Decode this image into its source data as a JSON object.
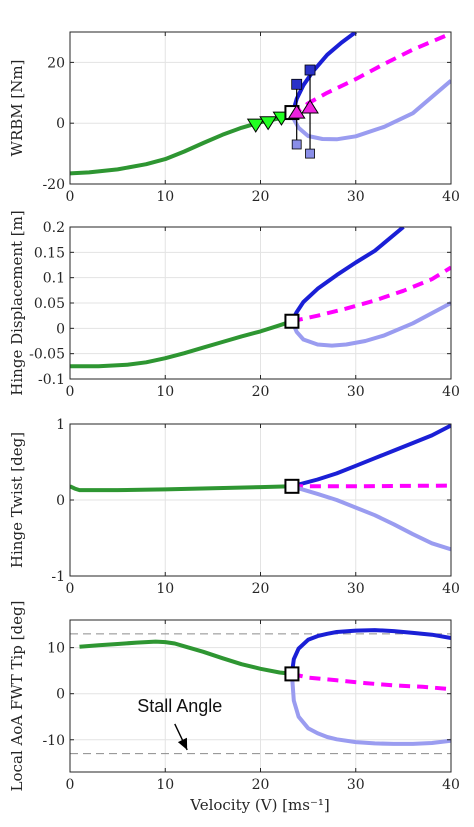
{
  "figure": {
    "xlabel": "Velocity (V) [ms⁻¹]"
  },
  "colors": {
    "pre_fold": "#2e9632",
    "stable_upper": "#1a1fd6",
    "unstable": "#ff00ff",
    "stable_lower": "#9a9cf0",
    "square_upper": "#2a32c8",
    "square_lower": "#8a8ee8",
    "triangle_down": "#22ff22",
    "triangle_up": "#ee22dd",
    "grid": "#e3e3e3",
    "stall_line": "#8c8c8c"
  },
  "chart_data": [
    {
      "type": "line",
      "ylabel": "WRBM [Nm]",
      "xlim": [
        0,
        40
      ],
      "ylim": [
        -20,
        30
      ],
      "xticks": [
        0,
        10,
        20,
        30,
        40
      ],
      "yticks": [
        -20,
        0,
        20
      ],
      "grid": true,
      "series": [
        {
          "role": "pre_fold",
          "style": "solid",
          "x": [
            0,
            2,
            5,
            8,
            10,
            12,
            14,
            16,
            18,
            20,
            22,
            23.3
          ],
          "y": [
            -16.5,
            -16.2,
            -15.2,
            -13.5,
            -11.8,
            -9.3,
            -6.5,
            -3.8,
            -1.5,
            0.3,
            1.6,
            2.5
          ]
        },
        {
          "role": "stable_upper",
          "style": "solid",
          "x": [
            23.3,
            23.8,
            24.5,
            25.5,
            27,
            28.5,
            30
          ],
          "y": [
            2.5,
            8,
            12.5,
            17,
            22.5,
            26.5,
            30
          ]
        },
        {
          "role": "unstable",
          "style": "dashed",
          "x": [
            23.3,
            25,
            27,
            30,
            33,
            36,
            40
          ],
          "y": [
            2.5,
            6.5,
            10,
            14.5,
            19.5,
            24.2,
            29.5
          ]
        },
        {
          "role": "stable_lower",
          "style": "solid",
          "x": [
            23.3,
            24,
            25,
            26.5,
            28,
            30,
            33,
            36,
            40
          ],
          "y": [
            2.5,
            -1.5,
            -4.2,
            -5.2,
            -5.3,
            -4.3,
            -1.2,
            3.3,
            14
          ]
        }
      ],
      "markers": [
        {
          "shape": "triangle_down",
          "x": 19.5,
          "y": -0.5
        },
        {
          "shape": "triangle_down",
          "x": 20.8,
          "y": 0.3
        },
        {
          "shape": "triangle_down",
          "x": 22.2,
          "y": 1.8
        },
        {
          "shape": "square_open",
          "x": 23.3,
          "y": 3.5
        },
        {
          "shape": "triangle_up",
          "x": 23.8,
          "y": 3.5
        },
        {
          "shape": "triangle_up",
          "x": 25.2,
          "y": 5.2
        },
        {
          "shape": "square_upper",
          "x": 23.8,
          "y": 12.8
        },
        {
          "shape": "square_upper",
          "x": 25.2,
          "y": 17.5
        },
        {
          "shape": "square_lower",
          "x": 23.8,
          "y": -7.0
        },
        {
          "shape": "square_lower",
          "x": 25.2,
          "y": -10.0
        }
      ],
      "error_bars": [
        {
          "x": 23.8,
          "y_low": -7.0,
          "y_high": 12.8
        },
        {
          "x": 25.2,
          "y_low": -10.0,
          "y_high": 17.5
        }
      ]
    },
    {
      "type": "line",
      "ylabel": "Hinge Displacement [m]",
      "xlim": [
        0,
        40
      ],
      "ylim": [
        -0.1,
        0.2
      ],
      "xticks": [
        0,
        10,
        20,
        30,
        40
      ],
      "yticks": [
        -0.1,
        -0.05,
        0,
        0.05,
        0.1,
        0.15,
        0.2
      ],
      "grid": true,
      "series": [
        {
          "role": "pre_fold",
          "style": "solid",
          "x": [
            0,
            3,
            6,
            8,
            10,
            12,
            14,
            16,
            18,
            20,
            22,
            23.3
          ],
          "y": [
            -0.075,
            -0.075,
            -0.072,
            -0.067,
            -0.059,
            -0.049,
            -0.038,
            -0.027,
            -0.016,
            -0.006,
            0.006,
            0.014
          ]
        },
        {
          "role": "stable_upper",
          "style": "solid",
          "x": [
            23.3,
            23.8,
            24.5,
            26,
            28,
            30,
            32,
            35
          ],
          "y": [
            0.014,
            0.032,
            0.052,
            0.078,
            0.105,
            0.13,
            0.153,
            0.2
          ]
        },
        {
          "role": "unstable",
          "style": "dashed",
          "x": [
            23.3,
            26,
            29,
            32,
            35,
            38,
            40
          ],
          "y": [
            0.014,
            0.025,
            0.039,
            0.055,
            0.074,
            0.097,
            0.12
          ]
        },
        {
          "role": "stable_lower",
          "style": "solid",
          "x": [
            23.3,
            23.8,
            24.5,
            26,
            27.5,
            29,
            31,
            33,
            36,
            40
          ],
          "y": [
            0.014,
            -0.007,
            -0.022,
            -0.032,
            -0.034,
            -0.032,
            -0.025,
            -0.014,
            0.01,
            0.05
          ]
        }
      ],
      "markers": [
        {
          "shape": "square_open",
          "x": 23.3,
          "y": 0.014
        }
      ]
    },
    {
      "type": "line",
      "ylabel": "Hinge Twist [deg]",
      "xlim": [
        0,
        40
      ],
      "ylim": [
        -1,
        1
      ],
      "xticks": [
        0,
        10,
        20,
        30,
        40
      ],
      "yticks": [
        -1,
        0,
        1
      ],
      "grid": true,
      "series": [
        {
          "role": "pre_fold",
          "style": "solid",
          "x": [
            0,
            0.5,
            1,
            2,
            5,
            10,
            15,
            20,
            23.3
          ],
          "y": [
            0.18,
            0.15,
            0.13,
            0.13,
            0.13,
            0.14,
            0.155,
            0.17,
            0.18
          ]
        },
        {
          "role": "stable_upper",
          "style": "solid",
          "x": [
            23.3,
            26,
            28,
            30,
            32,
            34,
            36,
            38,
            40
          ],
          "y": [
            0.18,
            0.27,
            0.35,
            0.45,
            0.55,
            0.65,
            0.75,
            0.85,
            0.98
          ]
        },
        {
          "role": "unstable",
          "style": "dashed",
          "x": [
            23.3,
            26,
            30,
            35,
            40
          ],
          "y": [
            0.18,
            0.18,
            0.18,
            0.185,
            0.19
          ]
        },
        {
          "role": "stable_lower",
          "style": "solid",
          "x": [
            23.3,
            26,
            28,
            30,
            32,
            34,
            36,
            38,
            40
          ],
          "y": [
            0.18,
            0.08,
            0,
            -0.1,
            -0.2,
            -0.32,
            -0.45,
            -0.57,
            -0.65
          ]
        }
      ],
      "markers": [
        {
          "shape": "square_open",
          "x": 23.3,
          "y": 0.18
        }
      ]
    },
    {
      "type": "line",
      "ylabel": "Local AoA FWT Tip [deg]",
      "xlim": [
        0,
        40
      ],
      "ylim": [
        -17,
        16
      ],
      "xticks": [
        0,
        10,
        20,
        30,
        40
      ],
      "yticks": [
        -10,
        0,
        10
      ],
      "grid": true,
      "stall_angle_lines": [
        13,
        -13
      ],
      "annotation": {
        "text": "Stall Angle",
        "x": 11,
        "y": -7
      },
      "series": [
        {
          "role": "pre_fold",
          "style": "solid",
          "x": [
            1,
            3,
            5,
            7,
            9,
            10,
            11,
            12,
            14,
            16,
            18,
            20,
            22,
            23.3
          ],
          "y": [
            10.2,
            10.5,
            10.8,
            11.1,
            11.3,
            11.2,
            10.9,
            10.3,
            9.1,
            7.7,
            6.4,
            5.4,
            4.6,
            4.3
          ]
        },
        {
          "role": "stable_upper",
          "style": "solid",
          "x": [
            23.3,
            23.5,
            24,
            25,
            26,
            27,
            28,
            30,
            32,
            34,
            36,
            38,
            40
          ],
          "y": [
            4.3,
            7.5,
            9.8,
            11.7,
            12.5,
            13,
            13.4,
            13.7,
            13.8,
            13.6,
            13.2,
            12.8,
            12.1
          ]
        },
        {
          "role": "unstable",
          "style": "dashed",
          "x": [
            23.3,
            25,
            28,
            31,
            34,
            37,
            40
          ],
          "y": [
            4.3,
            3.5,
            2.9,
            2.3,
            1.8,
            1.5,
            1.0
          ]
        },
        {
          "role": "stable_lower",
          "style": "solid",
          "x": [
            23.3,
            23.5,
            24,
            25,
            26,
            27,
            28,
            30,
            32,
            34,
            36,
            38,
            40
          ],
          "y": [
            4.3,
            -1.5,
            -5,
            -7.5,
            -8.6,
            -9.4,
            -9.9,
            -10.5,
            -10.8,
            -10.9,
            -10.9,
            -10.7,
            -10.2
          ]
        }
      ],
      "markers": [
        {
          "shape": "square_open",
          "x": 23.3,
          "y": 4.3
        }
      ]
    }
  ]
}
